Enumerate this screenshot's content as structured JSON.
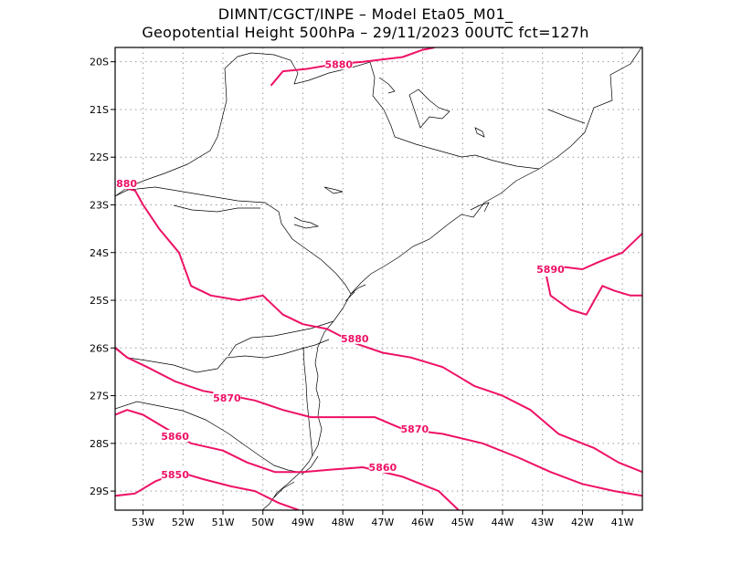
{
  "header": {
    "line1": "DIMNT/CGCT/INPE –   Model Eta05_M01_",
    "line2": "Geopotential Height 500hPa –   29/11/2023 00UTC fct=127h"
  },
  "map": {
    "lon_range": [
      -53.7,
      -40.5
    ],
    "lat_range": [
      -29.4,
      -19.7
    ],
    "contour_color": "#ee1166",
    "coast_color": "#000000",
    "grid_color": "#9a9a9a"
  },
  "axes": {
    "x_ticks": [
      {
        "lon": -53,
        "label": "53W"
      },
      {
        "lon": -52,
        "label": "52W"
      },
      {
        "lon": -51,
        "label": "51W"
      },
      {
        "lon": -50,
        "label": "50W"
      },
      {
        "lon": -49,
        "label": "49W"
      },
      {
        "lon": -48,
        "label": "48W"
      },
      {
        "lon": -47,
        "label": "47W"
      },
      {
        "lon": -46,
        "label": "46W"
      },
      {
        "lon": -45,
        "label": "45W"
      },
      {
        "lon": -44,
        "label": "44W"
      },
      {
        "lon": -43,
        "label": "43W"
      },
      {
        "lon": -42,
        "label": "42W"
      },
      {
        "lon": -41,
        "label": "41W"
      }
    ],
    "y_ticks": [
      {
        "lat": -20,
        "label": "20S"
      },
      {
        "lat": -21,
        "label": "21S"
      },
      {
        "lat": -22,
        "label": "22S"
      },
      {
        "lat": -23,
        "label": "23S"
      },
      {
        "lat": -24,
        "label": "24S"
      },
      {
        "lat": -25,
        "label": "25S"
      },
      {
        "lat": -26,
        "label": "26S"
      },
      {
        "lat": -27,
        "label": "27S"
      },
      {
        "lat": -28,
        "label": "28S"
      },
      {
        "lat": -29,
        "label": "29S"
      }
    ]
  },
  "contours": [
    {
      "value": 5880,
      "points": [
        [
          -49.8,
          -20.5
        ],
        [
          -49.5,
          -20.2
        ],
        [
          -48.9,
          -20.15
        ],
        [
          -48.2,
          -20.05
        ],
        [
          -47.5,
          -20.0
        ],
        [
          -46.5,
          -19.9
        ],
        [
          -46.0,
          -19.75
        ],
        [
          -45.7,
          -19.7
        ]
      ],
      "labels": [
        {
          "text": "5880",
          "lon": -48.1,
          "lat": -20.05
        }
      ]
    },
    {
      "value": 5880,
      "points": [
        [
          -53.7,
          -22.6
        ],
        [
          -53.2,
          -22.7
        ],
        [
          -53.0,
          -23.0
        ],
        [
          -52.6,
          -23.5
        ],
        [
          -52.1,
          -24.0
        ],
        [
          -51.8,
          -24.7
        ],
        [
          -51.3,
          -24.9
        ],
        [
          -50.6,
          -25.0
        ],
        [
          -50.0,
          -24.9
        ],
        [
          -49.5,
          -25.3
        ],
        [
          -49.0,
          -25.5
        ],
        [
          -48.4,
          -25.6
        ],
        [
          -47.7,
          -25.9
        ],
        [
          -47.0,
          -26.1
        ],
        [
          -46.3,
          -26.2
        ],
        [
          -45.5,
          -26.4
        ],
        [
          -44.7,
          -26.8
        ],
        [
          -44.0,
          -27.0
        ],
        [
          -43.3,
          -27.3
        ],
        [
          -42.6,
          -27.8
        ],
        [
          -41.7,
          -28.1
        ],
        [
          -41.1,
          -28.4
        ],
        [
          -40.5,
          -28.6
        ]
      ],
      "labels": [
        {
          "text": "5880",
          "lon": -53.5,
          "lat": -22.55
        },
        {
          "text": "5880",
          "lon": -47.7,
          "lat": -25.8
        }
      ]
    },
    {
      "value": 5890,
      "points": [
        [
          -42.9,
          -24.3
        ],
        [
          -42.5,
          -24.3
        ],
        [
          -42.0,
          -24.35
        ],
        [
          -41.6,
          -24.2
        ],
        [
          -41.0,
          -24.0
        ],
        [
          -40.5,
          -23.6
        ]
      ],
      "labels": [
        {
          "text": "5890",
          "lon": -42.8,
          "lat": -24.35
        }
      ]
    },
    {
      "value": 5890,
      "points": [
        [
          -42.9,
          -24.5
        ],
        [
          -42.8,
          -24.9
        ],
        [
          -42.3,
          -25.2
        ],
        [
          -41.9,
          -25.3
        ],
        [
          -41.7,
          -25.0
        ],
        [
          -41.5,
          -24.7
        ],
        [
          -41.2,
          -24.8
        ],
        [
          -40.8,
          -24.9
        ],
        [
          -40.5,
          -24.9
        ]
      ],
      "labels": []
    },
    {
      "value": 5870,
      "points": [
        [
          -53.7,
          -26.0
        ],
        [
          -53.4,
          -26.2
        ],
        [
          -52.9,
          -26.4
        ],
        [
          -52.2,
          -26.7
        ],
        [
          -51.5,
          -26.9
        ],
        [
          -50.8,
          -27.0
        ],
        [
          -50.2,
          -27.1
        ],
        [
          -49.5,
          -27.3
        ],
        [
          -48.8,
          -27.45
        ],
        [
          -48.0,
          -27.45
        ],
        [
          -47.2,
          -27.45
        ],
        [
          -46.5,
          -27.7
        ],
        [
          -45.5,
          -27.8
        ],
        [
          -44.5,
          -28.0
        ],
        [
          -43.6,
          -28.3
        ],
        [
          -42.8,
          -28.6
        ],
        [
          -42.0,
          -28.85
        ],
        [
          -41.2,
          -29.0
        ],
        [
          -40.5,
          -29.1
        ]
      ],
      "labels": [
        {
          "text": "5870",
          "lon": -50.9,
          "lat": -27.05
        },
        {
          "text": "5870",
          "lon": -46.2,
          "lat": -27.7
        }
      ]
    },
    {
      "value": 5860,
      "points": [
        [
          -53.7,
          -27.4
        ],
        [
          -53.4,
          -27.3
        ],
        [
          -53.0,
          -27.4
        ],
        [
          -52.4,
          -27.7
        ],
        [
          -51.8,
          -28.0
        ],
        [
          -51.0,
          -28.15
        ],
        [
          -50.4,
          -28.4
        ],
        [
          -49.7,
          -28.6
        ],
        [
          -49.0,
          -28.6
        ],
        [
          -48.3,
          -28.55
        ],
        [
          -47.5,
          -28.5
        ],
        [
          -46.5,
          -28.7
        ],
        [
          -45.6,
          -29.0
        ],
        [
          -45.1,
          -29.4
        ]
      ],
      "labels": [
        {
          "text": "5860",
          "lon": -52.2,
          "lat": -27.85
        },
        {
          "text": "5860",
          "lon": -47.0,
          "lat": -28.5
        }
      ]
    },
    {
      "value": 5850,
      "points": [
        [
          -53.7,
          -29.1
        ],
        [
          -53.2,
          -29.05
        ],
        [
          -52.7,
          -28.8
        ],
        [
          -52.1,
          -28.6
        ],
        [
          -51.5,
          -28.75
        ],
        [
          -50.8,
          -28.9
        ],
        [
          -50.2,
          -29.0
        ],
        [
          -49.6,
          -29.25
        ],
        [
          -49.1,
          -29.4
        ]
      ],
      "labels": [
        {
          "text": "5850",
          "lon": -52.2,
          "lat": -28.65
        }
      ]
    }
  ]
}
